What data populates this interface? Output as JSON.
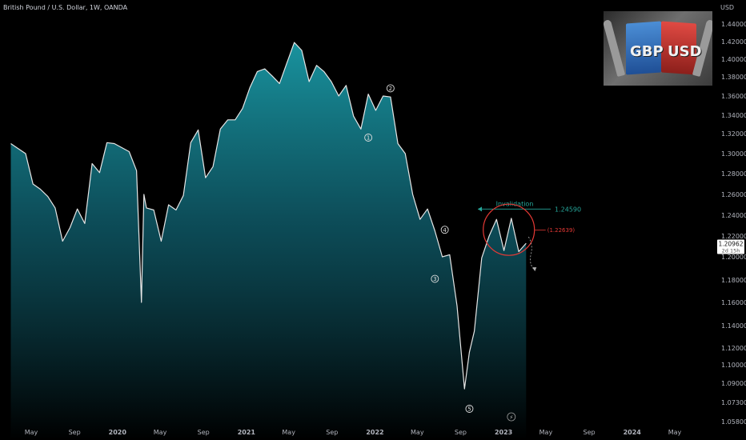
{
  "chart_info": {
    "legend": "British Pound / U.S. Dollar, 1W, OANDA",
    "currency": "USD"
  },
  "logo": {
    "left_text": "GBP",
    "right_text": "USD"
  },
  "colors": {
    "background": "#000000",
    "line": "#e6e6e6",
    "area_top": "#1a9aa6",
    "area_bottom": "#000000",
    "invalidation": "#26a69a",
    "circle": "#e53935",
    "price_tag_bg": "#ffffff"
  },
  "chart_data": {
    "type": "area",
    "title": "British Pound / U.S. Dollar, 1W, OANDA",
    "x_tick_labels": [
      "May",
      "Sep",
      "2020",
      "May",
      "Sep",
      "2021",
      "May",
      "Sep",
      "2022",
      "May",
      "Sep",
      "2023",
      "May",
      "Sep",
      "2024",
      "May"
    ],
    "y_tick_labels": [
      "1.44000",
      "1.42000",
      "1.40000",
      "1.38000",
      "1.36000",
      "1.34000",
      "1.32000",
      "1.30000",
      "1.28000",
      "1.26000",
      "1.24000",
      "1.22000",
      "1.20000",
      "1.18000",
      "1.16000",
      "1.14000",
      "1.12000",
      "1.10000",
      "1.09000",
      "1.07300",
      "1.05800"
    ],
    "ylabel": "USD",
    "grid": false,
    "x": [
      "2019-03-04",
      "2019-03-25",
      "2019-04-15",
      "2019-05-06",
      "2019-05-27",
      "2019-06-17",
      "2019-07-08",
      "2019-07-29",
      "2019-08-19",
      "2019-09-09",
      "2019-09-30",
      "2019-10-21",
      "2019-11-11",
      "2019-12-02",
      "2019-12-23",
      "2020-01-13",
      "2020-02-03",
      "2020-02-24",
      "2020-03-09",
      "2020-03-16",
      "2020-03-23",
      "2020-04-13",
      "2020-05-04",
      "2020-05-25",
      "2020-06-15",
      "2020-07-06",
      "2020-07-27",
      "2020-08-17",
      "2020-09-07",
      "2020-09-28",
      "2020-10-19",
      "2020-11-09",
      "2020-11-30",
      "2020-12-21",
      "2021-01-11",
      "2021-02-01",
      "2021-02-22",
      "2021-03-15",
      "2021-04-05",
      "2021-04-26",
      "2021-05-17",
      "2021-06-07",
      "2021-06-28",
      "2021-07-19",
      "2021-08-09",
      "2021-08-30",
      "2021-09-20",
      "2021-10-11",
      "2021-11-01",
      "2021-11-22",
      "2021-12-13",
      "2022-01-03",
      "2022-01-24",
      "2022-02-14",
      "2022-03-07",
      "2022-03-28",
      "2022-04-18",
      "2022-05-09",
      "2022-05-30",
      "2022-06-20",
      "2022-07-11",
      "2022-08-01",
      "2022-08-22",
      "2022-09-12",
      "2022-09-26",
      "2022-10-10",
      "2022-10-31",
      "2022-11-21",
      "2022-12-12",
      "2023-01-02",
      "2023-01-23",
      "2023-02-13",
      "2023-03-06"
    ],
    "y": [
      1.31,
      1.305,
      1.3,
      1.27,
      1.265,
      1.258,
      1.247,
      1.215,
      1.228,
      1.246,
      1.232,
      1.29,
      1.281,
      1.311,
      1.31,
      1.306,
      1.302,
      1.283,
      1.16,
      1.26,
      1.247,
      1.245,
      1.215,
      1.25,
      1.245,
      1.259,
      1.311,
      1.324,
      1.276,
      1.287,
      1.325,
      1.335,
      1.335,
      1.347,
      1.369,
      1.386,
      1.389,
      1.381,
      1.373,
      1.396,
      1.419,
      1.41,
      1.375,
      1.393,
      1.386,
      1.375,
      1.36,
      1.371,
      1.339,
      1.325,
      1.362,
      1.345,
      1.36,
      1.359,
      1.31,
      1.3,
      1.26,
      1.236,
      1.246,
      1.225,
      1.2,
      1.202,
      1.157,
      1.085,
      1.115,
      1.135,
      1.199,
      1.22,
      1.236,
      1.206,
      1.237,
      1.205,
      1.213
    ],
    "annotations": {
      "wave_labels": [
        "1",
        "2",
        "3",
        "4",
        "5"
      ],
      "invalidation_label": "Invalidation",
      "invalidation_value": "1.24590",
      "circle_level": "(1.22639)",
      "price_tag_value": "1.20962",
      "price_tag_countdown": "2d 15h",
      "event_marker": "⚡"
    }
  }
}
